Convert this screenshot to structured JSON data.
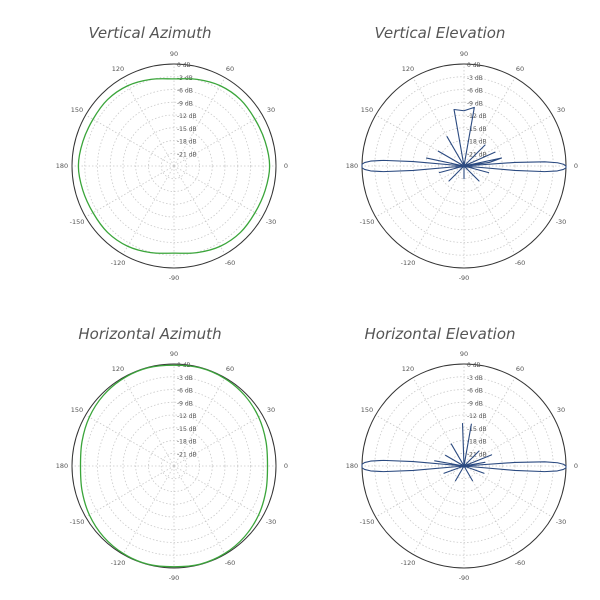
{
  "colors": {
    "azimuth": "#3aa53a",
    "elevation": "#2b4a80",
    "grid": "#c9c9c9",
    "ring": "#333333",
    "label": "#555555"
  },
  "ring_labels": [
    "0 dB",
    "-3 dB",
    "-6 dB",
    "-9 dB",
    "-12 dB",
    "-15 dB",
    "-18 dB",
    "-21 dB"
  ],
  "angle_labels": [
    "0",
    "30",
    "60",
    "90",
    "120",
    "150",
    "180",
    "-150",
    "-120",
    "-90",
    "-60",
    "-30"
  ],
  "chart_data": [
    {
      "type": "polar",
      "title": "Vertical Azimuth",
      "r_unit": "dB",
      "r_range": [
        -24,
        0
      ],
      "grid": true,
      "series": [
        {
          "pattern": "azimuth",
          "color": "#3aa53a",
          "points": [
            [
              0,
              -1.5
            ],
            [
              15,
              -1.8
            ],
            [
              30,
              -2.0
            ],
            [
              45,
              -1.9
            ],
            [
              60,
              -2.2
            ],
            [
              75,
              -2.9
            ],
            [
              90,
              -3.5
            ],
            [
              105,
              -2.9
            ],
            [
              120,
              -2.2
            ],
            [
              135,
              -1.9
            ],
            [
              150,
              -2.0
            ],
            [
              165,
              -1.8
            ],
            [
              180,
              -1.5
            ],
            [
              195,
              -1.8
            ],
            [
              210,
              -2.0
            ],
            [
              225,
              -1.9
            ],
            [
              240,
              -2.2
            ],
            [
              255,
              -2.9
            ],
            [
              270,
              -3.5
            ],
            [
              285,
              -2.9
            ],
            [
              300,
              -2.2
            ],
            [
              315,
              -1.9
            ],
            [
              330,
              -2.0
            ],
            [
              345,
              -1.8
            ]
          ]
        }
      ]
    },
    {
      "type": "polar",
      "title": "Vertical Elevation",
      "r_unit": "dB",
      "r_range": [
        -24,
        0
      ],
      "grid": true,
      "series": [
        {
          "pattern": "elevation",
          "color": "#2b4a80",
          "points": [
            [
              0,
              0
            ],
            [
              1,
              -0.6
            ],
            [
              2,
              -2
            ],
            [
              3,
              -5
            ],
            [
              4,
              -12
            ],
            [
              5,
              -24
            ],
            [
              8,
              -18
            ],
            [
              12,
              -15
            ],
            [
              16,
              -24
            ],
            [
              24,
              -16
            ],
            [
              30,
              -24
            ],
            [
              45,
              -17
            ],
            [
              55,
              -24
            ],
            [
              80,
              -10
            ],
            [
              90,
              -11
            ],
            [
              100,
              -10.5
            ],
            [
              110,
              -24
            ],
            [
              120,
              -16
            ],
            [
              135,
              -24
            ],
            [
              150,
              -17
            ],
            [
              160,
              -24
            ],
            [
              168,
              -15
            ],
            [
              174,
              -24
            ],
            [
              175,
              -12
            ],
            [
              176,
              -5
            ],
            [
              177,
              -2
            ],
            [
              178,
              -0.6
            ],
            [
              179,
              0
            ],
            [
              180,
              0
            ],
            [
              181,
              0
            ],
            [
              182,
              -0.6
            ],
            [
              183,
              -2
            ],
            [
              184,
              -5
            ],
            [
              185,
              -12
            ],
            [
              186,
              -24
            ],
            [
              195,
              -18
            ],
            [
              205,
              -24
            ],
            [
              225,
              -19
            ],
            [
              240,
              -24
            ],
            [
              270,
              -21
            ],
            [
              300,
              -24
            ],
            [
              315,
              -19
            ],
            [
              335,
              -24
            ],
            [
              345,
              -18
            ],
            [
              354,
              -24
            ],
            [
              355,
              -12
            ],
            [
              356,
              -5
            ],
            [
              357,
              -2
            ],
            [
              358,
              -0.6
            ],
            [
              359,
              0
            ]
          ]
        }
      ]
    },
    {
      "type": "polar",
      "title": "Horizontal Azimuth",
      "r_unit": "dB",
      "r_range": [
        -24,
        0
      ],
      "grid": true,
      "series": [
        {
          "pattern": "azimuth",
          "color": "#3aa53a",
          "points": [
            [
              0,
              -2.0
            ],
            [
              15,
              -1.6
            ],
            [
              30,
              -1.0
            ],
            [
              45,
              -0.5
            ],
            [
              60,
              -0.2
            ],
            [
              75,
              -0.1
            ],
            [
              90,
              -0.3
            ],
            [
              105,
              -0.1
            ],
            [
              120,
              -0.2
            ],
            [
              135,
              -0.5
            ],
            [
              150,
              -1.0
            ],
            [
              165,
              -1.6
            ],
            [
              180,
              -2.0
            ],
            [
              195,
              -1.6
            ],
            [
              210,
              -1.0
            ],
            [
              225,
              -0.5
            ],
            [
              240,
              -0.2
            ],
            [
              255,
              -0.1
            ],
            [
              270,
              -0.3
            ],
            [
              285,
              -0.1
            ],
            [
              300,
              -0.2
            ],
            [
              315,
              -0.5
            ],
            [
              330,
              -1.0
            ],
            [
              345,
              -1.6
            ]
          ]
        }
      ]
    },
    {
      "type": "polar",
      "title": "Horizontal Elevation",
      "r_unit": "dB",
      "r_range": [
        -24,
        0
      ],
      "grid": true,
      "series": [
        {
          "pattern": "elevation",
          "color": "#2b4a80",
          "points": [
            [
              0,
              0
            ],
            [
              1,
              -0.6
            ],
            [
              2,
              -2
            ],
            [
              3,
              -5
            ],
            [
              4,
              -12
            ],
            [
              5,
              -24
            ],
            [
              10,
              -19
            ],
            [
              16,
              -24
            ],
            [
              22,
              -17
            ],
            [
              30,
              -24
            ],
            [
              45,
              -19
            ],
            [
              60,
              -24
            ],
            [
              80,
              -14
            ],
            [
              88,
              -24
            ],
            [
              92,
              -14
            ],
            [
              100,
              -24
            ],
            [
              120,
              -18
            ],
            [
              135,
              -24
            ],
            [
              150,
              -19
            ],
            [
              164,
              -24
            ],
            [
              170,
              -17
            ],
            [
              174,
              -24
            ],
            [
              175,
              -12
            ],
            [
              176,
              -5
            ],
            [
              177,
              -2
            ],
            [
              178,
              -0.6
            ],
            [
              179,
              0
            ],
            [
              180,
              0
            ],
            [
              181,
              0
            ],
            [
              182,
              -0.6
            ],
            [
              183,
              -2
            ],
            [
              184,
              -5
            ],
            [
              185,
              -12
            ],
            [
              186,
              -24
            ],
            [
              200,
              -19
            ],
            [
              215,
              -24
            ],
            [
              240,
              -20
            ],
            [
              270,
              -24
            ],
            [
              300,
              -20
            ],
            [
              325,
              -24
            ],
            [
              340,
              -19
            ],
            [
              354,
              -24
            ],
            [
              355,
              -12
            ],
            [
              356,
              -5
            ],
            [
              357,
              -2
            ],
            [
              358,
              -0.6
            ],
            [
              359,
              0
            ]
          ]
        }
      ]
    }
  ]
}
